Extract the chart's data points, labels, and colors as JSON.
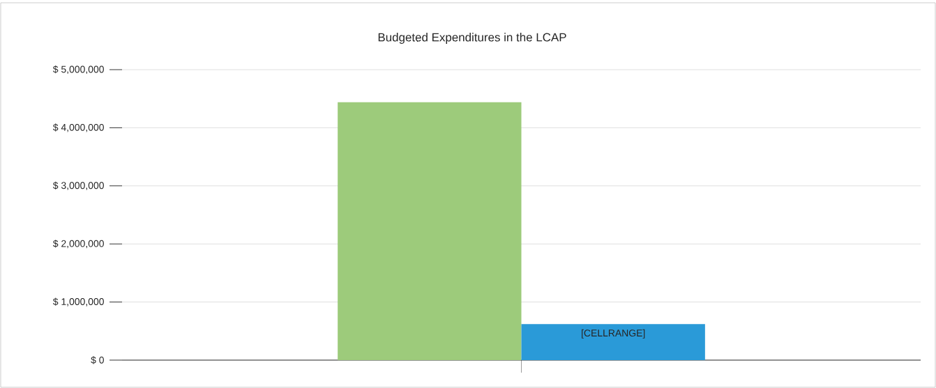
{
  "chart_data": {
    "type": "bar",
    "title": "Budgeted Expenditures in the LCAP",
    "categories": [
      null
    ],
    "series": [
      {
        "color": "#9dcb7b",
        "values": [
          4440000
        ]
      },
      {
        "color": "#2a9ad8",
        "values": [
          620000
        ],
        "value_labels": [
          "[CELLRANGE]"
        ]
      }
    ],
    "ylim": [
      0,
      5000000
    ],
    "yticks": [
      {
        "value": 0,
        "label": "$ 0"
      },
      {
        "value": 1000000,
        "label": "$ 1,000,000"
      },
      {
        "value": 2000000,
        "label": "$ 2,000,000"
      },
      {
        "value": 3000000,
        "label": "$ 3,000,000"
      },
      {
        "value": 4000000,
        "label": "$ 4,000,000"
      },
      {
        "value": 5000000,
        "label": "$ 5,000,000"
      }
    ],
    "grid": "y"
  }
}
